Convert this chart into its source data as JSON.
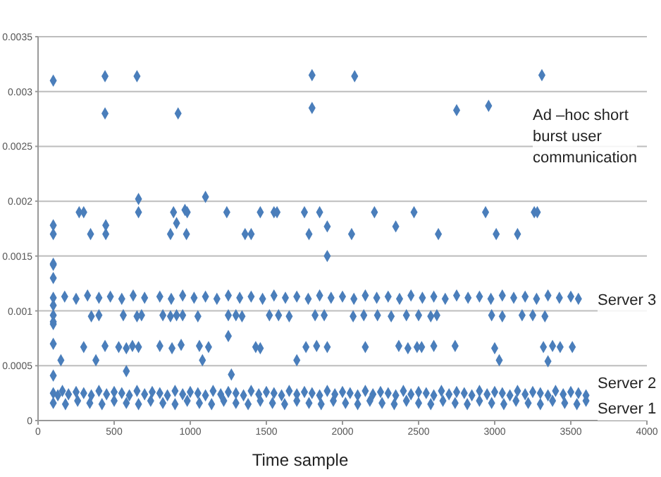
{
  "chart_data": {
    "type": "scatter",
    "xlabel": "Time sample",
    "grid": "y",
    "marker": "diamond",
    "xlim": [
      0,
      4000
    ],
    "xticks": [
      0,
      500,
      1000,
      1500,
      2000,
      2500,
      3000,
      3500,
      4000
    ],
    "ylim": [
      0,
      0.0035
    ],
    "yticks": [
      0,
      0.0005,
      0.001,
      0.0015,
      0.002,
      0.0025,
      0.003,
      0.0035
    ],
    "annotations": [
      "Ad –hoc short burst user communication",
      "Server 3",
      "Server 2",
      "Server 1"
    ],
    "series": [
      {
        "color": "#4a7ebb",
        "x": [
          100,
          130,
          160,
          200,
          250,
          300,
          350,
          400,
          450,
          500,
          550,
          600,
          650,
          700,
          750,
          800,
          850,
          900,
          950,
          1000,
          1050,
          1100,
          1150,
          1200,
          1250,
          1300,
          1350,
          1400,
          1450,
          1500,
          1550,
          1600,
          1650,
          1700,
          1750,
          1800,
          1850,
          1900,
          1950,
          2000,
          2050,
          2100,
          2150,
          2200,
          2250,
          2300,
          2350,
          2400,
          2450,
          2500,
          2550,
          2600,
          2650,
          2700,
          2750,
          2800,
          2850,
          2900,
          2950,
          3000,
          3050,
          3100,
          3150,
          3200,
          3250,
          3300,
          3350,
          3400,
          3450,
          3500,
          3550,
          3600,
          100,
          180,
          260,
          340,
          420,
          500,
          580,
          660,
          740,
          820,
          900,
          980,
          1060,
          1140,
          1220,
          1300,
          1380,
          1460,
          1540,
          1620,
          1700,
          1780,
          1860,
          1940,
          2020,
          2100,
          2180,
          2260,
          2340,
          2420,
          2500,
          2580,
          2660,
          2740,
          2820,
          2900,
          2980,
          3060,
          3140,
          3220,
          3300,
          3380,
          3460,
          3540,
          3600,
          100,
          175,
          250,
          325,
          400,
          475,
          550,
          625,
          700,
          800,
          875,
          950,
          1025,
          1100,
          1175,
          1250,
          1325,
          1400,
          1475,
          1550,
          1625,
          1700,
          1775,
          1850,
          1925,
          2000,
          2075,
          2150,
          2225,
          2300,
          2375,
          2450,
          2525,
          2600,
          2675,
          2750,
          2825,
          2900,
          2975,
          3050,
          3125,
          3200,
          3275,
          3350,
          3425,
          3500,
          3550,
          100,
          350,
          400,
          560,
          650,
          680,
          820,
          870,
          910,
          950,
          1050,
          1250,
          1300,
          1340,
          1520,
          1580,
          1650,
          1820,
          1880,
          2070,
          2140,
          2230,
          2320,
          2420,
          2500,
          2580,
          2620,
          2980,
          3050,
          3180,
          3250,
          3330,
          100,
          300,
          440,
          530,
          580,
          620,
          660,
          800,
          880,
          940,
          1060,
          1120,
          1250,
          1430,
          1460,
          1760,
          1830,
          1900,
          2150,
          2370,
          2430,
          2490,
          2520,
          2600,
          2740,
          3000,
          3320,
          3380,
          3430,
          3510,
          150,
          380,
          580,
          1080,
          1270,
          1700,
          100,
          3030,
          3350,
          100,
          100,
          100,
          100,
          100,
          100,
          100,
          100,
          270,
          300,
          345,
          445,
          445,
          660,
          660,
          870,
          890,
          910,
          965,
          975,
          980,
          1100,
          1240,
          1360,
          1400,
          1460,
          1550,
          1570,
          1750,
          1780,
          1850,
          1900,
          1900,
          2060,
          2210,
          2350,
          2470,
          2630,
          2940,
          3010,
          3150,
          3260,
          3280,
          100,
          440,
          440,
          650,
          920,
          1800,
          1800,
          2080,
          2750,
          2960,
          3310
        ],
        "values": [
          0.00025,
          0.00023,
          0.00027,
          0.00024,
          0.00026,
          0.00025,
          0.00023,
          0.00027,
          0.00024,
          0.00026,
          0.00025,
          0.00023,
          0.00027,
          0.00024,
          0.00026,
          0.00025,
          0.00023,
          0.00027,
          0.00024,
          0.00026,
          0.00025,
          0.00023,
          0.00027,
          0.00024,
          0.00026,
          0.00025,
          0.00023,
          0.00027,
          0.00024,
          0.00026,
          0.00025,
          0.00023,
          0.00027,
          0.00024,
          0.00026,
          0.00025,
          0.00023,
          0.00027,
          0.00024,
          0.00026,
          0.00025,
          0.00023,
          0.00027,
          0.00024,
          0.00026,
          0.00025,
          0.00023,
          0.00027,
          0.00024,
          0.00026,
          0.00025,
          0.00023,
          0.00027,
          0.00024,
          0.00026,
          0.00025,
          0.00023,
          0.00027,
          0.00024,
          0.00026,
          0.00025,
          0.00023,
          0.00027,
          0.00024,
          0.00026,
          0.00025,
          0.00023,
          0.00027,
          0.00024,
          0.00026,
          0.00025,
          0.00023,
          0.00016,
          0.00015,
          0.00018,
          0.00016,
          0.00015,
          0.00018,
          0.00016,
          0.00015,
          0.00018,
          0.00016,
          0.00015,
          0.00018,
          0.00016,
          0.00015,
          0.00018,
          0.00016,
          0.00015,
          0.00018,
          0.00016,
          0.00015,
          0.00018,
          0.00016,
          0.00015,
          0.00018,
          0.00016,
          0.00015,
          0.00018,
          0.00016,
          0.00015,
          0.00018,
          0.00016,
          0.00015,
          0.00018,
          0.00016,
          0.00015,
          0.00018,
          0.00016,
          0.00015,
          0.00018,
          0.00016,
          0.00015,
          0.00018,
          0.00016,
          0.00015,
          0.00018,
          0.00112,
          0.00113,
          0.00111,
          0.00114,
          0.00112,
          0.00113,
          0.00111,
          0.00114,
          0.00112,
          0.00113,
          0.00111,
          0.00114,
          0.00112,
          0.00113,
          0.00111,
          0.00114,
          0.00112,
          0.00113,
          0.00111,
          0.00114,
          0.00112,
          0.00113,
          0.00111,
          0.00114,
          0.00112,
          0.00113,
          0.00111,
          0.00114,
          0.00112,
          0.00113,
          0.00111,
          0.00114,
          0.00112,
          0.00113,
          0.00111,
          0.00114,
          0.00112,
          0.00113,
          0.00111,
          0.00114,
          0.00112,
          0.00113,
          0.00111,
          0.00114,
          0.00112,
          0.00113,
          0.00111,
          0.00096,
          0.00095,
          0.00096,
          0.00096,
          0.00095,
          0.00096,
          0.00096,
          0.00095,
          0.00096,
          0.00096,
          0.00095,
          0.00096,
          0.00096,
          0.00095,
          0.00096,
          0.00096,
          0.00095,
          0.00096,
          0.00096,
          0.00095,
          0.00096,
          0.00096,
          0.00095,
          0.00096,
          0.00096,
          0.00095,
          0.00096,
          0.00096,
          0.00095,
          0.00096,
          0.00096,
          0.00095,
          0.0007,
          0.00067,
          0.00068,
          0.00067,
          0.00066,
          0.00068,
          0.00067,
          0.00068,
          0.00066,
          0.00069,
          0.00068,
          0.00067,
          0.00077,
          0.00067,
          0.00066,
          0.00067,
          0.00068,
          0.00067,
          0.00067,
          0.00068,
          0.00066,
          0.00067,
          0.00067,
          0.00068,
          0.00068,
          0.00066,
          0.00067,
          0.00068,
          0.00067,
          0.00067,
          0.00055,
          0.00055,
          0.00045,
          0.00055,
          0.00042,
          0.00055,
          0.00041,
          0.00055,
          0.00054,
          0.00142,
          0.00143,
          0.0013,
          0.00105,
          0.0009,
          0.00088,
          0.00178,
          0.0017,
          0.0019,
          0.0019,
          0.0017,
          0.00178,
          0.0017,
          0.00202,
          0.0019,
          0.0017,
          0.0019,
          0.0018,
          0.00192,
          0.0017,
          0.0019,
          0.00204,
          0.0019,
          0.0017,
          0.0017,
          0.0019,
          0.0019,
          0.0019,
          0.0019,
          0.0017,
          0.0019,
          0.00177,
          0.0015,
          0.0017,
          0.0019,
          0.00177,
          0.0019,
          0.0017,
          0.0019,
          0.0017,
          0.0017,
          0.0019,
          0.0019,
          0.0031,
          0.00314,
          0.0028,
          0.00314,
          0.0028,
          0.00315,
          0.00285,
          0.00314,
          0.00283,
          0.00287,
          0.00315
        ]
      }
    ]
  }
}
